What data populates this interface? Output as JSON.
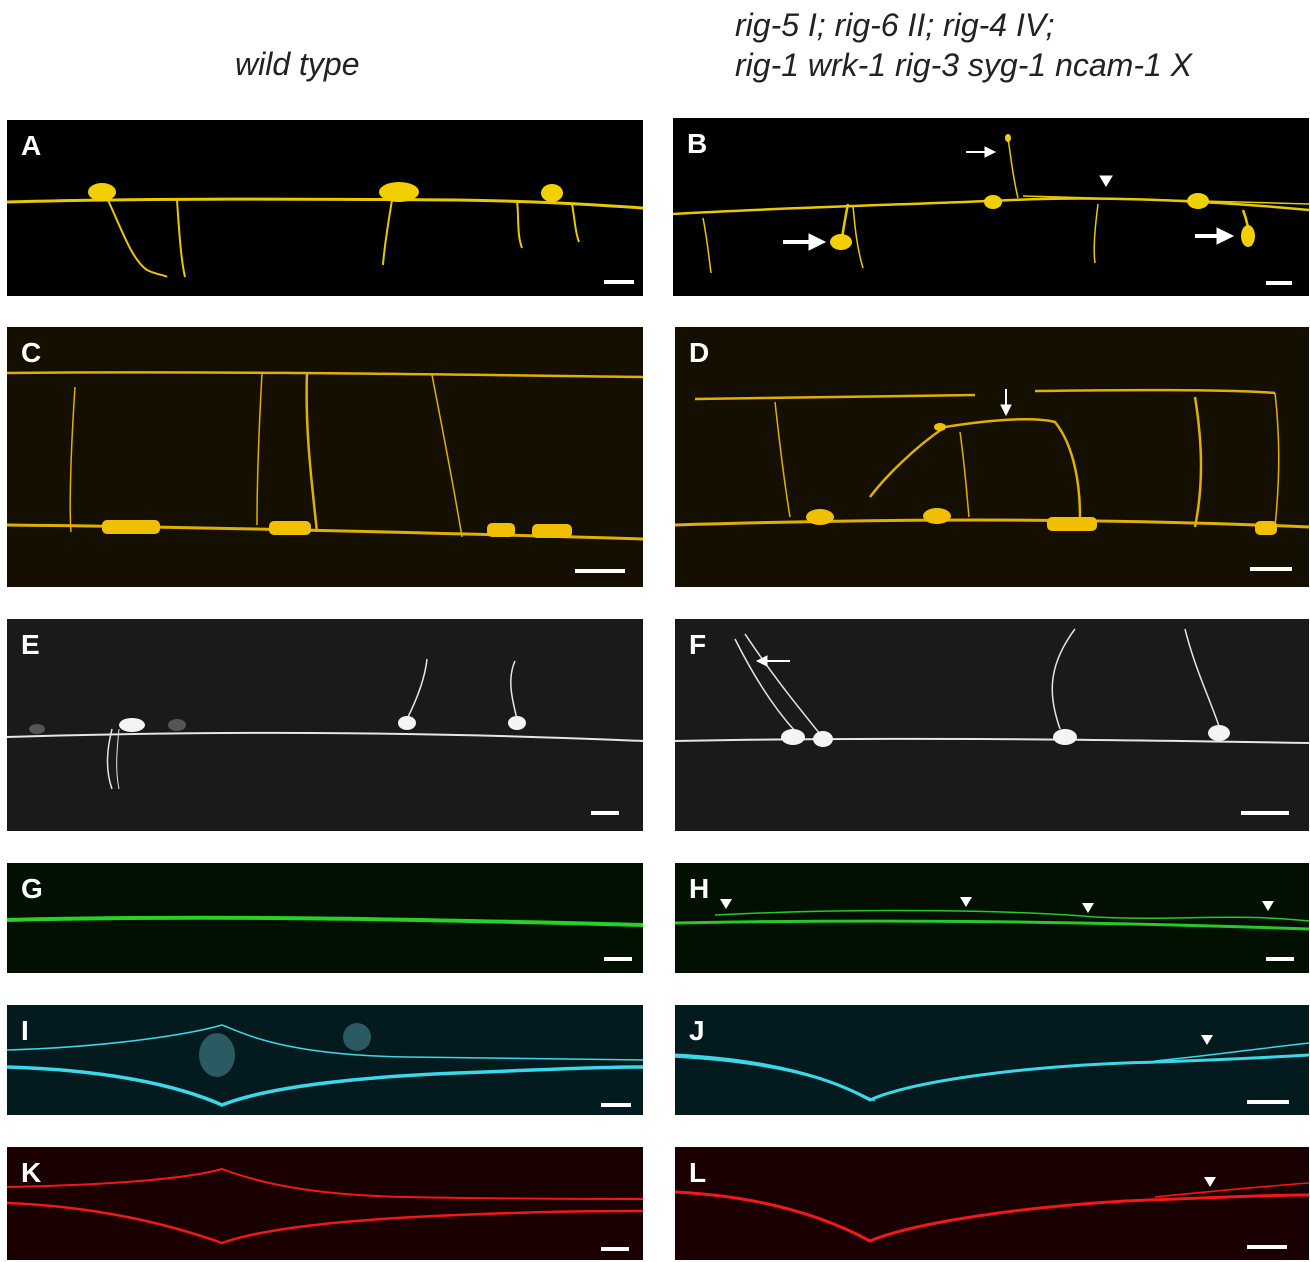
{
  "headers": {
    "left": "wild type",
    "right_line1": "rig-5 I; rig-6 II; rig-4 IV;",
    "right_line2": "rig-1 wrk-1 rig-3 syg-1 ncam-1 X"
  },
  "panels": {
    "A": {
      "label": "A",
      "bg": "#000000",
      "stroke": "#e8c800"
    },
    "B": {
      "label": "B",
      "bg": "#000000",
      "stroke": "#e8c800"
    },
    "C": {
      "label": "C",
      "bg": "#140f00",
      "stroke": "#e0b000"
    },
    "D": {
      "label": "D",
      "bg": "#140f00",
      "stroke": "#e0b000"
    },
    "E": {
      "label": "E",
      "bg": "#1a1a1a",
      "stroke": "#e6e6e6"
    },
    "F": {
      "label": "F",
      "bg": "#1a1a1a",
      "stroke": "#e6e6e6"
    },
    "G": {
      "label": "G",
      "bg": "#021002",
      "stroke": "#28d028"
    },
    "H": {
      "label": "H",
      "bg": "#021002",
      "stroke": "#28c828"
    },
    "I": {
      "label": "I",
      "bg": "#031a1e",
      "stroke": "#3ad8e8"
    },
    "J": {
      "label": "J",
      "bg": "#031a1e",
      "stroke": "#3ad8e8"
    },
    "K": {
      "label": "K",
      "bg": "#1a0000",
      "stroke": "#f01818"
    },
    "L": {
      "label": "L",
      "bg": "#1a0000",
      "stroke": "#f01818"
    }
  }
}
